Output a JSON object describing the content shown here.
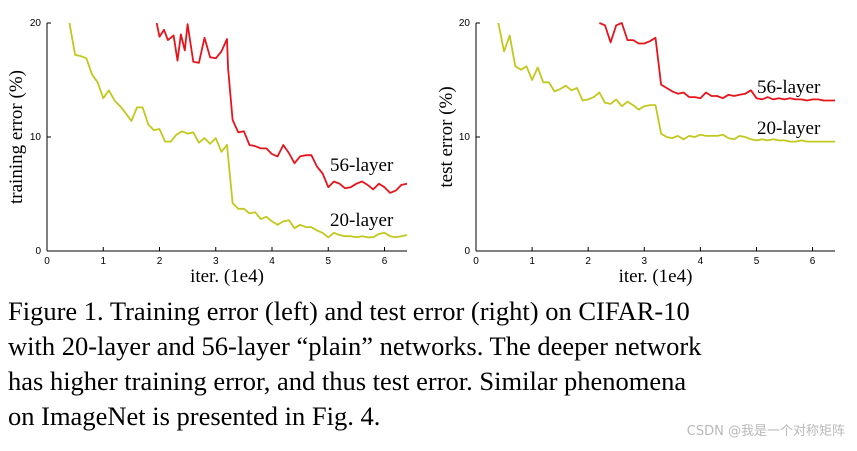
{
  "chart_data": [
    {
      "type": "line",
      "xlabel": "iter. (1e4)",
      "ylabel": "training error (%)",
      "xlim": [
        0,
        6.4
      ],
      "ylim": [
        0,
        20
      ],
      "xticks": [
        "0",
        "1",
        "2",
        "3",
        "4",
        "5",
        "6"
      ],
      "yticks": [
        "0",
        "10",
        "20"
      ],
      "legend": "inline labels at line ends",
      "grid": false,
      "series": [
        {
          "name": "56-layer",
          "color": "#e8141b",
          "x": [
            1.95,
            2.0,
            2.08,
            2.15,
            2.25,
            2.32,
            2.38,
            2.45,
            2.5,
            2.6,
            2.7,
            2.8,
            2.9,
            3.0,
            3.1,
            3.2,
            3.22,
            3.3,
            3.4,
            3.5,
            3.6,
            3.7,
            3.8,
            3.9,
            4.0,
            4.1,
            4.2,
            4.3,
            4.4,
            4.5,
            4.6,
            4.7,
            4.8,
            4.9,
            5.0,
            5.1,
            5.2,
            5.3,
            5.4,
            5.5,
            5.6,
            5.7,
            5.8,
            5.9,
            6.0,
            6.1,
            6.2,
            6.3,
            6.4
          ],
          "y": [
            20,
            18.8,
            19.4,
            18.5,
            18.9,
            16.7,
            19.0,
            17.6,
            19.9,
            16.6,
            16.5,
            18.7,
            17.0,
            16.9,
            17.5,
            18.6,
            16.0,
            11.5,
            10.4,
            10.5,
            9.3,
            9.2,
            9.0,
            9.0,
            8.5,
            8.3,
            9.3,
            8.6,
            7.7,
            8.3,
            8.4,
            8.4,
            7.4,
            6.8,
            5.6,
            6.1,
            5.9,
            5.5,
            5.6,
            5.9,
            6.1,
            5.8,
            5.4,
            5.9,
            5.6,
            5.1,
            5.3,
            5.8,
            5.9
          ]
        },
        {
          "name": "20-layer",
          "color": "#c2c81e",
          "x": [
            0.4,
            0.5,
            0.6,
            0.7,
            0.8,
            0.9,
            1.0,
            1.1,
            1.2,
            1.3,
            1.4,
            1.5,
            1.6,
            1.7,
            1.8,
            1.9,
            2.0,
            2.1,
            2.2,
            2.3,
            2.4,
            2.5,
            2.6,
            2.7,
            2.8,
            2.9,
            3.0,
            3.1,
            3.2,
            3.3,
            3.4,
            3.5,
            3.6,
            3.7,
            3.8,
            3.9,
            4.0,
            4.1,
            4.2,
            4.3,
            4.4,
            4.5,
            4.6,
            4.7,
            4.8,
            4.9,
            5.0,
            5.1,
            5.2,
            5.3,
            5.4,
            5.5,
            5.6,
            5.7,
            5.8,
            5.9,
            6.0,
            6.1,
            6.2,
            6.3,
            6.4
          ],
          "y": [
            20,
            17.2,
            17.1,
            16.9,
            15.5,
            14.8,
            13.4,
            14.1,
            13.2,
            12.7,
            12.1,
            11.4,
            12.6,
            12.6,
            11.1,
            10.6,
            10.7,
            9.6,
            9.6,
            10.2,
            10.5,
            10.3,
            10.4,
            9.5,
            9.9,
            9.4,
            9.9,
            8.7,
            9.3,
            4.2,
            3.7,
            3.7,
            3.3,
            3.4,
            2.8,
            3.0,
            2.6,
            2.3,
            2.6,
            2.7,
            2.0,
            2.3,
            2.1,
            2.1,
            1.8,
            1.6,
            1.2,
            1.6,
            1.4,
            1.3,
            1.3,
            1.2,
            1.3,
            1.2,
            1.2,
            1.5,
            1.6,
            1.3,
            1.2,
            1.3,
            1.4
          ]
        }
      ]
    },
    {
      "type": "line",
      "xlabel": "iter. (1e4)",
      "ylabel": "test error (%)",
      "xlim": [
        0,
        6.4
      ],
      "ylim": [
        0,
        20
      ],
      "xticks": [
        "0",
        "1",
        "2",
        "3",
        "4",
        "5",
        "6"
      ],
      "yticks": [
        "0",
        "10",
        "20"
      ],
      "legend": "inline labels at line ends",
      "grid": false,
      "series": [
        {
          "name": "56-layer",
          "color": "#e8141b",
          "x": [
            2.2,
            2.3,
            2.4,
            2.5,
            2.6,
            2.7,
            2.8,
            2.9,
            3.0,
            3.1,
            3.2,
            3.3,
            3.4,
            3.5,
            3.6,
            3.7,
            3.8,
            3.9,
            4.0,
            4.1,
            4.2,
            4.3,
            4.4,
            4.5,
            4.6,
            4.7,
            4.8,
            4.9,
            5.0,
            5.1,
            5.2,
            5.3,
            5.4,
            5.5,
            5.6,
            5.7,
            5.8,
            5.9,
            6.0,
            6.1,
            6.2,
            6.3,
            6.4
          ],
          "y": [
            20,
            19.8,
            18.3,
            19.8,
            20,
            18.5,
            18.5,
            18.2,
            18.2,
            18.4,
            18.7,
            14.6,
            14.3,
            14.0,
            13.8,
            13.9,
            13.5,
            13.5,
            13.4,
            13.9,
            13.6,
            13.6,
            13.4,
            13.7,
            13.6,
            13.7,
            13.8,
            14.1,
            13.4,
            13.3,
            13.5,
            13.3,
            13.4,
            13.3,
            13.4,
            13.3,
            13.3,
            13.2,
            13.3,
            13.3,
            13.2,
            13.2,
            13.2
          ]
        },
        {
          "name": "20-layer",
          "color": "#c2c81e",
          "x": [
            0.4,
            0.5,
            0.6,
            0.7,
            0.8,
            0.9,
            1.0,
            1.1,
            1.2,
            1.3,
            1.4,
            1.5,
            1.6,
            1.7,
            1.8,
            1.9,
            2.0,
            2.1,
            2.2,
            2.3,
            2.4,
            2.5,
            2.6,
            2.7,
            2.8,
            2.9,
            3.0,
            3.1,
            3.2,
            3.3,
            3.4,
            3.5,
            3.6,
            3.7,
            3.8,
            3.9,
            4.0,
            4.1,
            4.2,
            4.3,
            4.4,
            4.5,
            4.6,
            4.7,
            4.8,
            4.9,
            5.0,
            5.1,
            5.2,
            5.3,
            5.4,
            5.5,
            5.6,
            5.7,
            5.8,
            5.9,
            6.0,
            6.1,
            6.2,
            6.3,
            6.4
          ],
          "y": [
            20,
            17.5,
            18.9,
            16.2,
            15.9,
            16.2,
            15.0,
            16.1,
            14.8,
            14.8,
            14.0,
            14.2,
            14.5,
            14.1,
            14.3,
            13.2,
            13.3,
            13.5,
            13.9,
            13.0,
            12.9,
            13.3,
            12.7,
            13.1,
            12.8,
            12.4,
            12.7,
            12.8,
            12.8,
            10.3,
            10.0,
            9.9,
            10.1,
            9.8,
            10.1,
            10.0,
            10.2,
            10.1,
            10.1,
            10.1,
            10.2,
            9.9,
            9.8,
            10.1,
            10.0,
            9.8,
            9.7,
            9.8,
            9.7,
            9.8,
            9.7,
            9.7,
            9.6,
            9.6,
            9.7,
            9.6,
            9.6,
            9.6,
            9.6,
            9.6,
            9.6
          ]
        }
      ]
    }
  ],
  "caption": {
    "lines": [
      "Figure 1. Training error (left) and test error (right) on CIFAR-10",
      "with 20-layer and 56-layer “plain” networks. The deeper network",
      "has higher training error, and thus test error.  Similar phenomena",
      "on ImageNet is presented in Fig. 4."
    ]
  },
  "watermark": "CSDN @我是一个对称矩阵"
}
